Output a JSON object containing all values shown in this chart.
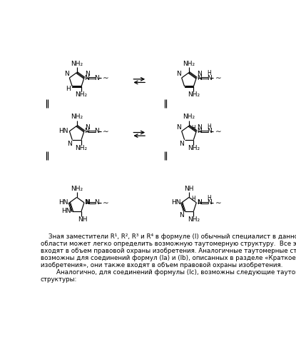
{
  "bg_color": "#ffffff",
  "fig_width": 4.15,
  "fig_height": 5.0,
  "dpi": 100,
  "russian_text": [
    "    Зная заместители R¹, R², R³ и R⁴ в формуле (I) обычный специалист в данной",
    "области может легко определить возможную таутомерную структуру.  Все эти таутомеры",
    "входят в объем правовой охраны изобретения. Аналогичные таутомерные структуры",
    "возможны для соединений формул (Ia) и (Ib), описанных в разделе «Краткое описание",
    "изобретения», они также входят в объем правовой охраны изобретения.",
    "        Аналогично, для соединений формулы (Ic), возможны следующие таутомерные",
    "структуры:"
  ]
}
